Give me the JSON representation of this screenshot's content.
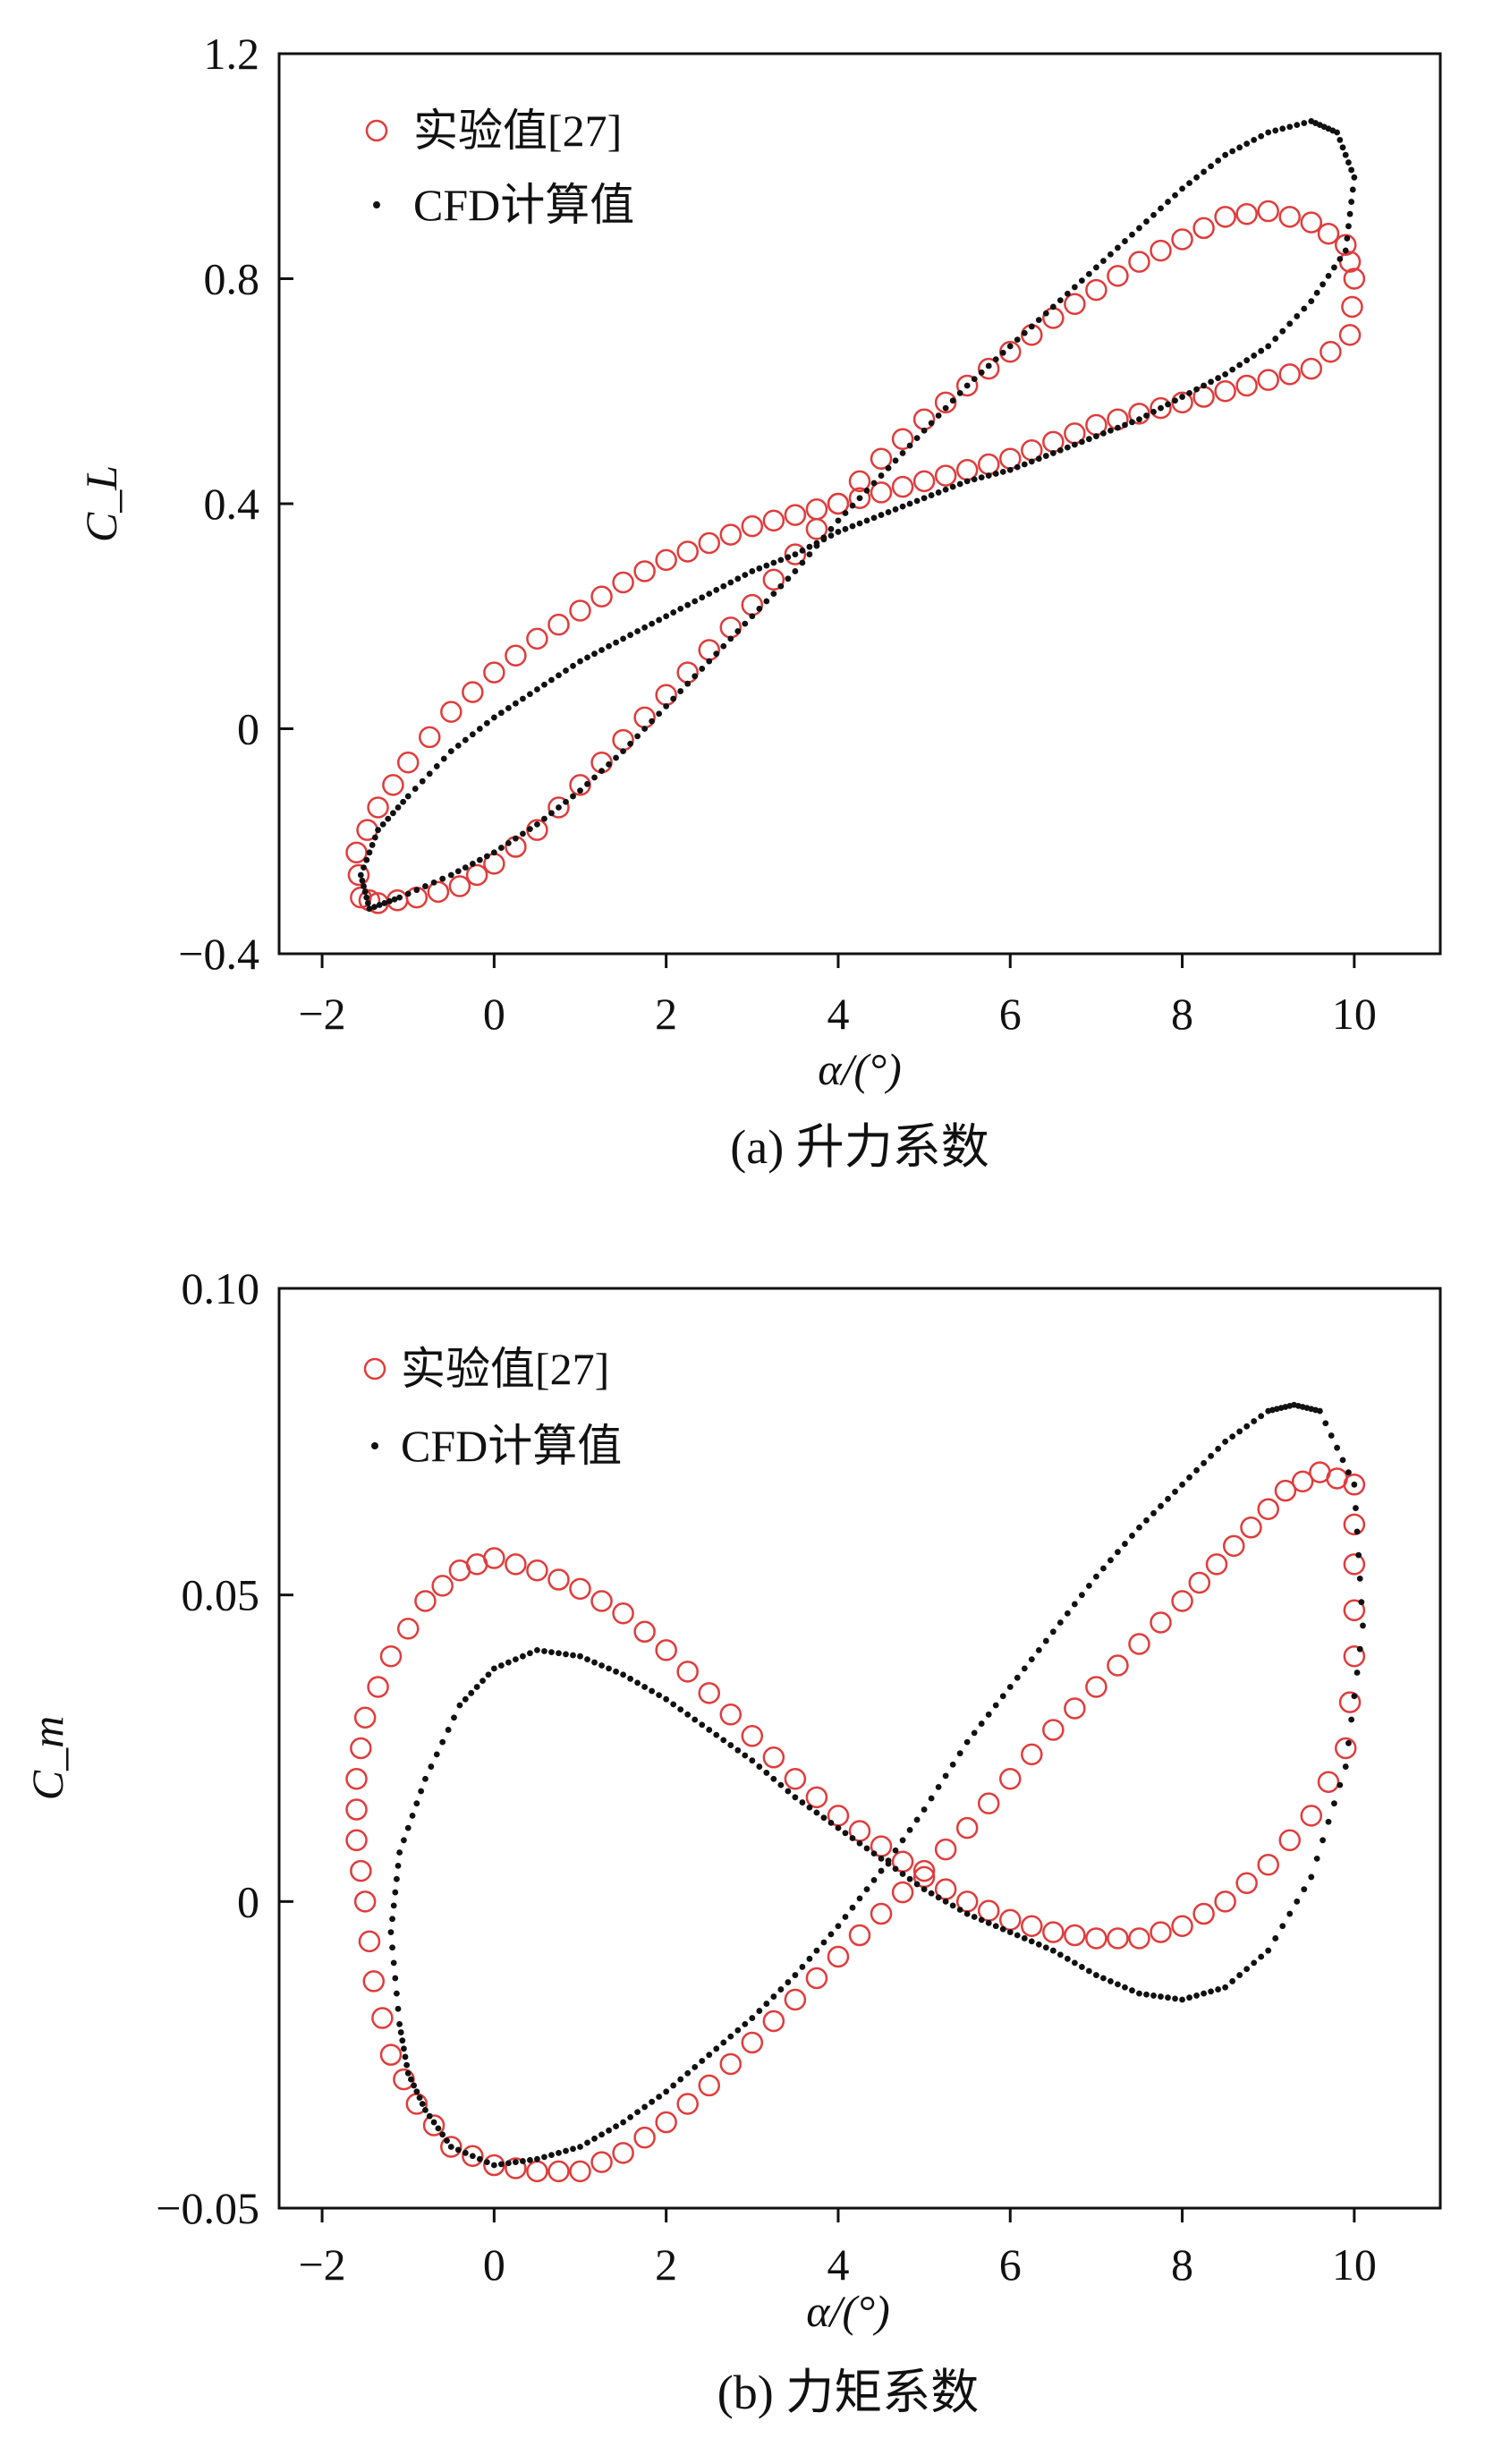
{
  "figure": {
    "panels": [
      {
        "caption": "(a) 升力系数"
      },
      {
        "caption": "(b) 力矩系数"
      }
    ]
  },
  "colors": {
    "experiment": "#e03c3c",
    "cfd": "#111111",
    "axis": "#111111"
  },
  "chart_data": [
    {
      "type": "scatter",
      "title": "",
      "xlabel": "α/(°)",
      "ylabel": "C_L",
      "xlim": [
        -2.5,
        11
      ],
      "ylim": [
        -0.4,
        1.2
      ],
      "xticks": [
        -2,
        0,
        2,
        4,
        6,
        8,
        10
      ],
      "xtick_labels": [
        "−2",
        "0",
        "2",
        "4",
        "6",
        "8",
        "10"
      ],
      "yticks": [
        -0.4,
        0,
        0.4,
        0.8,
        1.2
      ],
      "ytick_labels": [
        "−0.4",
        "0",
        "0.4",
        "0.8",
        "1.2"
      ],
      "legend_position": "top-left",
      "series": [
        {
          "name": "实验值[27]",
          "marker": "open-circle",
          "points": [
            [
              -1.55,
              -0.3
            ],
            [
              -1.35,
              -0.31
            ],
            [
              -0.9,
              -0.3
            ],
            [
              -0.4,
              -0.28
            ],
            [
              0.0,
              -0.24
            ],
            [
              0.5,
              -0.18
            ],
            [
              1.0,
              -0.1
            ],
            [
              1.5,
              -0.02
            ],
            [
              2.0,
              0.06
            ],
            [
              2.5,
              0.14
            ],
            [
              3.0,
              0.22
            ],
            [
              3.5,
              0.31
            ],
            [
              4.0,
              0.4
            ],
            [
              4.5,
              0.48
            ],
            [
              5.0,
              0.55
            ],
            [
              5.5,
              0.61
            ],
            [
              6.0,
              0.67
            ],
            [
              6.5,
              0.73
            ],
            [
              7.0,
              0.78
            ],
            [
              7.5,
              0.83
            ],
            [
              8.0,
              0.87
            ],
            [
              8.5,
              0.91
            ],
            [
              9.0,
              0.92
            ],
            [
              9.5,
              0.9
            ],
            [
              9.9,
              0.86
            ],
            [
              10.0,
              0.8
            ],
            [
              9.95,
              0.7
            ],
            [
              9.5,
              0.64
            ],
            [
              9.0,
              0.62
            ],
            [
              8.5,
              0.6
            ],
            [
              8.0,
              0.58
            ],
            [
              7.5,
              0.56
            ],
            [
              7.0,
              0.54
            ],
            [
              6.5,
              0.51
            ],
            [
              6.0,
              0.48
            ],
            [
              5.5,
              0.46
            ],
            [
              5.0,
              0.44
            ],
            [
              4.5,
              0.42
            ],
            [
              4.0,
              0.4
            ],
            [
              3.5,
              0.38
            ],
            [
              3.0,
              0.36
            ],
            [
              2.5,
              0.33
            ],
            [
              2.0,
              0.3
            ],
            [
              1.5,
              0.26
            ],
            [
              1.0,
              0.21
            ],
            [
              0.5,
              0.16
            ],
            [
              0.0,
              0.1
            ],
            [
              -0.5,
              0.03
            ],
            [
              -1.0,
              -0.06
            ],
            [
              -1.35,
              -0.14
            ],
            [
              -1.6,
              -0.22
            ]
          ]
        },
        {
          "name": "CFD计算值",
          "marker": "dot",
          "points": [
            [
              -1.45,
              -0.32
            ],
            [
              -1.1,
              -0.3
            ],
            [
              -0.5,
              -0.26
            ],
            [
              0.0,
              -0.22
            ],
            [
              0.5,
              -0.17
            ],
            [
              1.0,
              -0.11
            ],
            [
              1.5,
              -0.04
            ],
            [
              2.0,
              0.04
            ],
            [
              2.5,
              0.12
            ],
            [
              3.0,
              0.2
            ],
            [
              3.5,
              0.28
            ],
            [
              4.0,
              0.37
            ],
            [
              4.5,
              0.45
            ],
            [
              5.0,
              0.53
            ],
            [
              5.5,
              0.61
            ],
            [
              6.0,
              0.68
            ],
            [
              6.5,
              0.75
            ],
            [
              7.0,
              0.82
            ],
            [
              7.5,
              0.89
            ],
            [
              8.0,
              0.96
            ],
            [
              8.5,
              1.02
            ],
            [
              9.0,
              1.06
            ],
            [
              9.5,
              1.08
            ],
            [
              9.8,
              1.06
            ],
            [
              10.0,
              0.98
            ],
            [
              9.9,
              0.85
            ],
            [
              9.5,
              0.76
            ],
            [
              9.0,
              0.68
            ],
            [
              8.5,
              0.63
            ],
            [
              8.0,
              0.59
            ],
            [
              7.5,
              0.55
            ],
            [
              7.0,
              0.52
            ],
            [
              6.5,
              0.49
            ],
            [
              6.0,
              0.46
            ],
            [
              5.5,
              0.44
            ],
            [
              5.0,
              0.41
            ],
            [
              4.5,
              0.38
            ],
            [
              4.0,
              0.35
            ],
            [
              3.5,
              0.31
            ],
            [
              3.0,
              0.28
            ],
            [
              2.5,
              0.24
            ],
            [
              2.0,
              0.2
            ],
            [
              1.5,
              0.16
            ],
            [
              1.0,
              0.12
            ],
            [
              0.5,
              0.07
            ],
            [
              0.0,
              0.02
            ],
            [
              -0.5,
              -0.04
            ],
            [
              -1.0,
              -0.12
            ],
            [
              -1.35,
              -0.18
            ],
            [
              -1.55,
              -0.26
            ]
          ]
        }
      ]
    },
    {
      "type": "scatter",
      "title": "",
      "xlabel": "α/(°)",
      "ylabel": "C_m",
      "xlim": [
        -2.5,
        11
      ],
      "ylim": [
        -0.05,
        0.1
      ],
      "xticks": [
        -2,
        0,
        2,
        4,
        6,
        8,
        10
      ],
      "xtick_labels": [
        "−2",
        "0",
        "2",
        "4",
        "6",
        "8",
        "10"
      ],
      "yticks": [
        -0.05,
        0,
        0.05,
        0.1
      ],
      "ytick_labels": [
        "−0.05",
        "0",
        "0.05",
        "0.10"
      ],
      "legend_position": "top-left",
      "series": [
        {
          "name": "实验值[27]",
          "marker": "open-circle",
          "points": [
            [
              -1.6,
              0.02
            ],
            [
              -1.5,
              0.03
            ],
            [
              -1.2,
              0.04
            ],
            [
              -0.8,
              0.049
            ],
            [
              -0.4,
              0.054
            ],
            [
              0.0,
              0.056
            ],
            [
              0.5,
              0.054
            ],
            [
              1.0,
              0.051
            ],
            [
              1.5,
              0.047
            ],
            [
              2.0,
              0.041
            ],
            [
              2.5,
              0.034
            ],
            [
              3.0,
              0.027
            ],
            [
              3.5,
              0.02
            ],
            [
              4.0,
              0.014
            ],
            [
              4.5,
              0.009
            ],
            [
              5.0,
              0.004
            ],
            [
              5.5,
              0.0
            ],
            [
              6.0,
              -0.003
            ],
            [
              6.5,
              -0.005
            ],
            [
              7.0,
              -0.006
            ],
            [
              7.5,
              -0.006
            ],
            [
              8.0,
              -0.004
            ],
            [
              8.5,
              0.0
            ],
            [
              9.0,
              0.006
            ],
            [
              9.5,
              0.014
            ],
            [
              9.9,
              0.025
            ],
            [
              10.0,
              0.04
            ],
            [
              10.0,
              0.055
            ],
            [
              10.0,
              0.068
            ],
            [
              9.6,
              0.07
            ],
            [
              9.2,
              0.067
            ],
            [
              8.8,
              0.061
            ],
            [
              8.4,
              0.055
            ],
            [
              8.0,
              0.049
            ],
            [
              7.5,
              0.042
            ],
            [
              7.0,
              0.035
            ],
            [
              6.5,
              0.028
            ],
            [
              6.0,
              0.02
            ],
            [
              5.5,
              0.012
            ],
            [
              5.0,
              0.005
            ],
            [
              4.5,
              -0.002
            ],
            [
              4.0,
              -0.009
            ],
            [
              3.5,
              -0.016
            ],
            [
              3.0,
              -0.023
            ],
            [
              2.5,
              -0.03
            ],
            [
              2.0,
              -0.036
            ],
            [
              1.5,
              -0.041
            ],
            [
              1.0,
              -0.044
            ],
            [
              0.5,
              -0.044
            ],
            [
              0.0,
              -0.043
            ],
            [
              -0.5,
              -0.04
            ],
            [
              -0.9,
              -0.033
            ],
            [
              -1.2,
              -0.025
            ],
            [
              -1.4,
              -0.013
            ],
            [
              -1.5,
              0.0
            ],
            [
              -1.6,
              0.01
            ]
          ]
        },
        {
          "name": "CFD计算值",
          "marker": "dot",
          "points": [
            [
              -1.1,
              -0.02
            ],
            [
              -1.2,
              -0.005
            ],
            [
              -1.1,
              0.008
            ],
            [
              -0.8,
              0.02
            ],
            [
              -0.4,
              0.032
            ],
            [
              0.0,
              0.038
            ],
            [
              0.5,
              0.041
            ],
            [
              1.0,
              0.04
            ],
            [
              1.5,
              0.037
            ],
            [
              2.0,
              0.033
            ],
            [
              2.5,
              0.028
            ],
            [
              3.0,
              0.023
            ],
            [
              3.5,
              0.017
            ],
            [
              4.0,
              0.012
            ],
            [
              4.5,
              0.007
            ],
            [
              5.0,
              0.002
            ],
            [
              5.5,
              -0.002
            ],
            [
              6.0,
              -0.005
            ],
            [
              6.5,
              -0.008
            ],
            [
              7.0,
              -0.012
            ],
            [
              7.5,
              -0.015
            ],
            [
              8.0,
              -0.016
            ],
            [
              8.5,
              -0.014
            ],
            [
              9.0,
              -0.008
            ],
            [
              9.5,
              0.004
            ],
            [
              9.9,
              0.022
            ],
            [
              10.1,
              0.045
            ],
            [
              10.0,
              0.068
            ],
            [
              9.6,
              0.08
            ],
            [
              9.3,
              0.081
            ],
            [
              9.0,
              0.08
            ],
            [
              8.5,
              0.075
            ],
            [
              8.0,
              0.068
            ],
            [
              7.5,
              0.061
            ],
            [
              7.0,
              0.053
            ],
            [
              6.5,
              0.044
            ],
            [
              6.0,
              0.035
            ],
            [
              5.5,
              0.026
            ],
            [
              5.0,
              0.015
            ],
            [
              4.5,
              0.005
            ],
            [
              4.0,
              -0.004
            ],
            [
              3.5,
              -0.012
            ],
            [
              3.0,
              -0.019
            ],
            [
              2.5,
              -0.025
            ],
            [
              2.0,
              -0.031
            ],
            [
              1.5,
              -0.036
            ],
            [
              1.0,
              -0.04
            ],
            [
              0.5,
              -0.042
            ],
            [
              0.0,
              -0.043
            ],
            [
              -0.5,
              -0.04
            ],
            [
              -0.8,
              -0.034
            ],
            [
              -1.0,
              -0.028
            ]
          ]
        }
      ]
    }
  ]
}
